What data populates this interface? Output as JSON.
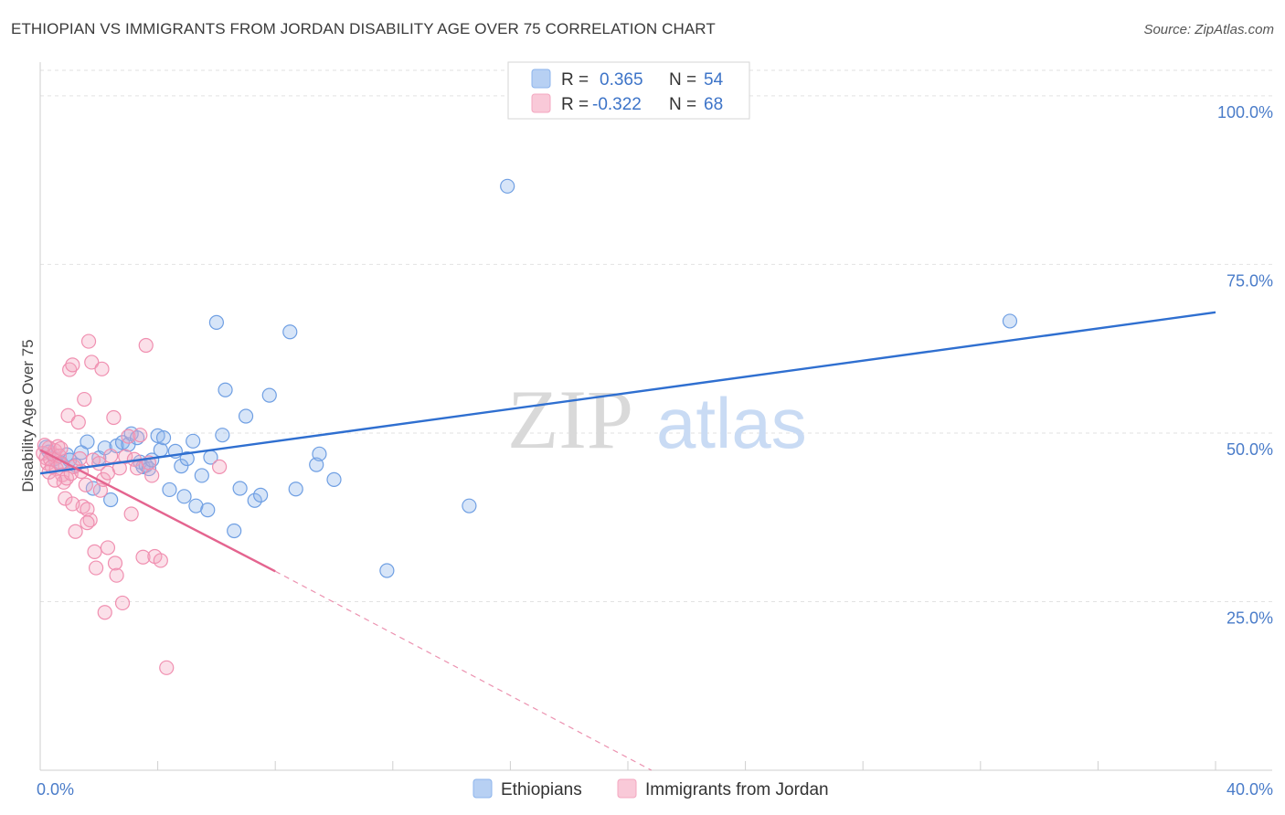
{
  "header": {
    "title": "ETHIOPIAN VS IMMIGRANTS FROM JORDAN DISABILITY AGE OVER 75 CORRELATION CHART",
    "source": "Source: ZipAtlas.com"
  },
  "watermark": {
    "zip": "ZIP",
    "atlas": "atlas"
  },
  "legend": {
    "rows": [
      {
        "r_label": "R =",
        "r_value": "0.365",
        "n_label": "N =",
        "n_value": "54",
        "color": "#8db4ec"
      },
      {
        "r_label": "R =",
        "r_value": "-0.322",
        "n_label": "N =",
        "n_value": "68",
        "color": "#f4a7c0"
      }
    ]
  },
  "chart_data": {
    "type": "scatter",
    "title": "ETHIOPIAN VS IMMIGRANTS FROM JORDAN DISABILITY AGE OVER 75 CORRELATION CHART",
    "xlabel": "",
    "ylabel": "Disability Age Over 75",
    "xlim": [
      0,
      40
    ],
    "ylim": [
      0,
      105
    ],
    "x_tick_labels": [
      "0.0%",
      "40.0%"
    ],
    "y_ticks": [
      25,
      50,
      75,
      100
    ],
    "y_tick_labels": [
      "25.0%",
      "50.0%",
      "75.0%",
      "100.0%"
    ],
    "grid": true,
    "legend_position": "bottom",
    "series": [
      {
        "name": "Ethiopians",
        "color": "#6f9fe3",
        "trend": {
          "x": [
            0,
            40
          ],
          "y": [
            44.0,
            67.9
          ],
          "color": "#2f6fd0"
        },
        "points": [
          [
            0.3,
            47.2
          ],
          [
            0.5,
            46.2
          ],
          [
            0.7,
            45.6
          ],
          [
            0.9,
            46.8
          ],
          [
            1.0,
            46.0
          ],
          [
            1.2,
            45.2
          ],
          [
            1.4,
            47.1
          ],
          [
            1.6,
            48.7
          ],
          [
            1.8,
            41.8
          ],
          [
            2.0,
            46.3
          ],
          [
            2.2,
            47.8
          ],
          [
            2.4,
            40.1
          ],
          [
            2.6,
            48.1
          ],
          [
            2.8,
            48.6
          ],
          [
            3.0,
            48.3
          ],
          [
            3.1,
            49.9
          ],
          [
            3.3,
            49.3
          ],
          [
            3.4,
            45.7
          ],
          [
            3.5,
            45.0
          ],
          [
            3.6,
            45.2
          ],
          [
            3.7,
            44.7
          ],
          [
            3.8,
            46.0
          ],
          [
            4.0,
            49.6
          ],
          [
            4.1,
            47.5
          ],
          [
            4.2,
            49.3
          ],
          [
            4.4,
            41.6
          ],
          [
            4.6,
            47.3
          ],
          [
            4.8,
            45.1
          ],
          [
            4.9,
            40.6
          ],
          [
            5.0,
            46.2
          ],
          [
            5.2,
            48.8
          ],
          [
            5.3,
            39.2
          ],
          [
            5.5,
            43.7
          ],
          [
            5.7,
            38.6
          ],
          [
            5.8,
            46.4
          ],
          [
            6.0,
            66.4
          ],
          [
            6.2,
            49.7
          ],
          [
            6.3,
            56.4
          ],
          [
            6.6,
            35.5
          ],
          [
            6.8,
            41.8
          ],
          [
            7.0,
            52.5
          ],
          [
            7.3,
            40.0
          ],
          [
            7.5,
            40.8
          ],
          [
            7.8,
            55.6
          ],
          [
            8.5,
            65.0
          ],
          [
            8.7,
            41.7
          ],
          [
            9.4,
            45.3
          ],
          [
            9.5,
            46.9
          ],
          [
            10.0,
            43.1
          ],
          [
            11.8,
            29.6
          ],
          [
            14.6,
            39.2
          ],
          [
            15.9,
            86.6
          ],
          [
            33.0,
            66.6
          ],
          [
            0.2,
            47.9
          ]
        ]
      },
      {
        "name": "Immigrants from Jordan",
        "color": "#f08fb0",
        "trend": {
          "x": [
            0,
            8.0
          ],
          "y": [
            47.5,
            29.5
          ],
          "color": "#e4648f",
          "dashed_to": [
            20.8,
            0
          ]
        },
        "points": [
          [
            0.1,
            47.0
          ],
          [
            0.2,
            46.3
          ],
          [
            0.25,
            45.5
          ],
          [
            0.3,
            47.8
          ],
          [
            0.35,
            46.1
          ],
          [
            0.4,
            45.0
          ],
          [
            0.45,
            46.8
          ],
          [
            0.5,
            47.4
          ],
          [
            0.55,
            44.7
          ],
          [
            0.6,
            48.0
          ],
          [
            0.65,
            46.6
          ],
          [
            0.7,
            45.4
          ],
          [
            0.75,
            43.8
          ],
          [
            0.8,
            42.7
          ],
          [
            0.85,
            40.3
          ],
          [
            0.9,
            43.3
          ],
          [
            0.95,
            52.6
          ],
          [
            1.0,
            59.4
          ],
          [
            1.05,
            44.0
          ],
          [
            1.1,
            60.1
          ],
          [
            1.15,
            45.0
          ],
          [
            1.2,
            35.4
          ],
          [
            1.3,
            51.6
          ],
          [
            1.35,
            46.2
          ],
          [
            1.4,
            44.3
          ],
          [
            1.45,
            39.1
          ],
          [
            1.5,
            55.0
          ],
          [
            1.55,
            42.3
          ],
          [
            1.6,
            38.7
          ],
          [
            1.65,
            63.6
          ],
          [
            1.7,
            37.1
          ],
          [
            1.75,
            60.5
          ],
          [
            1.8,
            46.0
          ],
          [
            1.85,
            32.4
          ],
          [
            1.9,
            30.0
          ],
          [
            2.0,
            45.5
          ],
          [
            2.05,
            41.5
          ],
          [
            2.1,
            59.5
          ],
          [
            2.15,
            43.1
          ],
          [
            2.2,
            23.4
          ],
          [
            2.3,
            44.1
          ],
          [
            2.4,
            46.6
          ],
          [
            2.5,
            52.3
          ],
          [
            2.55,
            30.7
          ],
          [
            2.6,
            28.9
          ],
          [
            2.7,
            44.8
          ],
          [
            2.8,
            24.8
          ],
          [
            2.9,
            46.5
          ],
          [
            3.0,
            49.5
          ],
          [
            3.1,
            38.0
          ],
          [
            3.2,
            46.1
          ],
          [
            3.3,
            44.8
          ],
          [
            3.4,
            49.7
          ],
          [
            3.5,
            31.6
          ],
          [
            3.6,
            63.0
          ],
          [
            3.7,
            45.6
          ],
          [
            3.8,
            43.7
          ],
          [
            3.9,
            31.7
          ],
          [
            4.1,
            31.1
          ],
          [
            4.3,
            15.2
          ],
          [
            6.1,
            45.0
          ],
          [
            0.15,
            48.2
          ],
          [
            0.3,
            44.2
          ],
          [
            0.5,
            43.0
          ],
          [
            0.7,
            47.7
          ],
          [
            1.1,
            39.5
          ],
          [
            1.6,
            36.7
          ],
          [
            2.3,
            33.0
          ]
        ]
      }
    ]
  }
}
